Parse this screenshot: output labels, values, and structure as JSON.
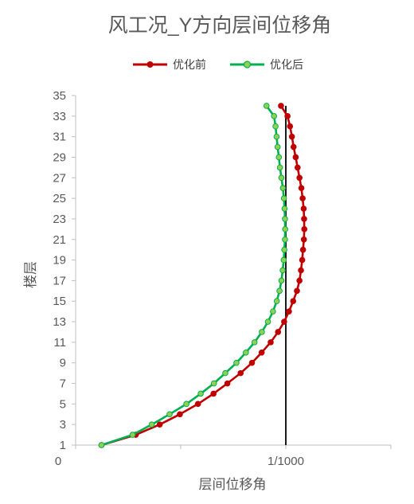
{
  "chart_data": {
    "type": "line",
    "title": "风工况_Y方向层间位移角",
    "xlabel": "层间位移角",
    "ylabel": "楼层",
    "xlim": [
      0,
      0.0015
    ],
    "ylim": [
      1,
      35
    ],
    "x_tick_labels": [
      "0",
      "1/1000"
    ],
    "y_ticks": [
      1,
      3,
      5,
      7,
      9,
      11,
      13,
      15,
      17,
      19,
      21,
      23,
      25,
      27,
      29,
      31,
      33,
      35
    ],
    "reference_line": {
      "x": 0.001
    },
    "legend_position": "top",
    "grid": false,
    "series": [
      {
        "name": "优化前",
        "color": "#c00000",
        "points": [
          [
            0.000123,
            1
          ],
          [
            0.000286,
            2
          ],
          [
            0.0004,
            3
          ],
          [
            0.000496,
            4
          ],
          [
            0.000582,
            5
          ],
          [
            0.000656,
            6
          ],
          [
            0.000722,
            7
          ],
          [
            0.000785,
            8
          ],
          [
            0.000839,
            9
          ],
          [
            0.000885,
            10
          ],
          [
            0.000928,
            11
          ],
          [
            0.000963,
            12
          ],
          [
            0.000992,
            13
          ],
          [
            0.001015,
            14
          ],
          [
            0.001035,
            15
          ],
          [
            0.001053,
            16
          ],
          [
            0.001065,
            17
          ],
          [
            0.001072,
            18
          ],
          [
            0.001078,
            19
          ],
          [
            0.001082,
            20
          ],
          [
            0.001086,
            21
          ],
          [
            0.001088,
            22
          ],
          [
            0.001087,
            23
          ],
          [
            0.001085,
            24
          ],
          [
            0.00108,
            25
          ],
          [
            0.001074,
            26
          ],
          [
            0.001065,
            27
          ],
          [
            0.001056,
            28
          ],
          [
            0.001047,
            29
          ],
          [
            0.001037,
            30
          ],
          [
            0.001029,
            31
          ],
          [
            0.00102,
            32
          ],
          [
            0.001008,
            33
          ],
          [
            0.000977,
            34
          ]
        ]
      },
      {
        "name": "优化后",
        "color": "#00b050",
        "points": [
          [
            0.000123,
            1
          ],
          [
            0.000271,
            2
          ],
          [
            0.000362,
            3
          ],
          [
            0.000447,
            4
          ],
          [
            0.000527,
            5
          ],
          [
            0.000595,
            6
          ],
          [
            0.000658,
            7
          ],
          [
            0.000712,
            8
          ],
          [
            0.000765,
            9
          ],
          [
            0.00081,
            10
          ],
          [
            0.000851,
            11
          ],
          [
            0.000886,
            12
          ],
          [
            0.000915,
            13
          ],
          [
            0.000939,
            14
          ],
          [
            0.000957,
            15
          ],
          [
            0.00097,
            16
          ],
          [
            0.000979,
            17
          ],
          [
            0.000985,
            18
          ],
          [
            0.00099,
            19
          ],
          [
            0.000993,
            20
          ],
          [
            0.000996,
            21
          ],
          [
            0.000997,
            22
          ],
          [
            0.000996,
            23
          ],
          [
            0.000994,
            24
          ],
          [
            0.000991,
            25
          ],
          [
            0.000986,
            26
          ],
          [
            0.000979,
            27
          ],
          [
            0.000972,
            28
          ],
          [
            0.000967,
            29
          ],
          [
            0.000961,
            30
          ],
          [
            0.000956,
            31
          ],
          [
            0.000951,
            32
          ],
          [
            0.000944,
            33
          ],
          [
            0.000908,
            34
          ]
        ]
      }
    ]
  }
}
